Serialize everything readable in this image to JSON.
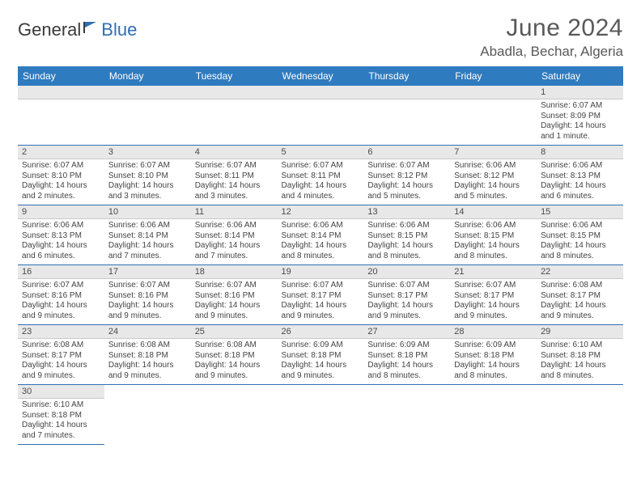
{
  "logo": {
    "text1": "General",
    "text2": "Blue"
  },
  "title": "June 2024",
  "location": "Abadla, Bechar, Algeria",
  "colors": {
    "header_bg": "#2f7bbf",
    "header_text": "#ffffff",
    "daynum_bg": "#e8e8e8",
    "cell_border": "#2f6fb3",
    "title_color": "#595959",
    "logo_gray": "#3a3a3a",
    "logo_blue": "#2f6fb3"
  },
  "day_headers": [
    "Sunday",
    "Monday",
    "Tuesday",
    "Wednesday",
    "Thursday",
    "Friday",
    "Saturday"
  ],
  "weeks": [
    [
      {
        "empty": true
      },
      {
        "empty": true
      },
      {
        "empty": true
      },
      {
        "empty": true
      },
      {
        "empty": true
      },
      {
        "empty": true
      },
      {
        "day": "1",
        "sunrise": "Sunrise: 6:07 AM",
        "sunset": "Sunset: 8:09 PM",
        "daylight": "Daylight: 14 hours and 1 minute."
      }
    ],
    [
      {
        "day": "2",
        "sunrise": "Sunrise: 6:07 AM",
        "sunset": "Sunset: 8:10 PM",
        "daylight": "Daylight: 14 hours and 2 minutes."
      },
      {
        "day": "3",
        "sunrise": "Sunrise: 6:07 AM",
        "sunset": "Sunset: 8:10 PM",
        "daylight": "Daylight: 14 hours and 3 minutes."
      },
      {
        "day": "4",
        "sunrise": "Sunrise: 6:07 AM",
        "sunset": "Sunset: 8:11 PM",
        "daylight": "Daylight: 14 hours and 3 minutes."
      },
      {
        "day": "5",
        "sunrise": "Sunrise: 6:07 AM",
        "sunset": "Sunset: 8:11 PM",
        "daylight": "Daylight: 14 hours and 4 minutes."
      },
      {
        "day": "6",
        "sunrise": "Sunrise: 6:07 AM",
        "sunset": "Sunset: 8:12 PM",
        "daylight": "Daylight: 14 hours and 5 minutes."
      },
      {
        "day": "7",
        "sunrise": "Sunrise: 6:06 AM",
        "sunset": "Sunset: 8:12 PM",
        "daylight": "Daylight: 14 hours and 5 minutes."
      },
      {
        "day": "8",
        "sunrise": "Sunrise: 6:06 AM",
        "sunset": "Sunset: 8:13 PM",
        "daylight": "Daylight: 14 hours and 6 minutes."
      }
    ],
    [
      {
        "day": "9",
        "sunrise": "Sunrise: 6:06 AM",
        "sunset": "Sunset: 8:13 PM",
        "daylight": "Daylight: 14 hours and 6 minutes."
      },
      {
        "day": "10",
        "sunrise": "Sunrise: 6:06 AM",
        "sunset": "Sunset: 8:14 PM",
        "daylight": "Daylight: 14 hours and 7 minutes."
      },
      {
        "day": "11",
        "sunrise": "Sunrise: 6:06 AM",
        "sunset": "Sunset: 8:14 PM",
        "daylight": "Daylight: 14 hours and 7 minutes."
      },
      {
        "day": "12",
        "sunrise": "Sunrise: 6:06 AM",
        "sunset": "Sunset: 8:14 PM",
        "daylight": "Daylight: 14 hours and 8 minutes."
      },
      {
        "day": "13",
        "sunrise": "Sunrise: 6:06 AM",
        "sunset": "Sunset: 8:15 PM",
        "daylight": "Daylight: 14 hours and 8 minutes."
      },
      {
        "day": "14",
        "sunrise": "Sunrise: 6:06 AM",
        "sunset": "Sunset: 8:15 PM",
        "daylight": "Daylight: 14 hours and 8 minutes."
      },
      {
        "day": "15",
        "sunrise": "Sunrise: 6:06 AM",
        "sunset": "Sunset: 8:15 PM",
        "daylight": "Daylight: 14 hours and 8 minutes."
      }
    ],
    [
      {
        "day": "16",
        "sunrise": "Sunrise: 6:07 AM",
        "sunset": "Sunset: 8:16 PM",
        "daylight": "Daylight: 14 hours and 9 minutes."
      },
      {
        "day": "17",
        "sunrise": "Sunrise: 6:07 AM",
        "sunset": "Sunset: 8:16 PM",
        "daylight": "Daylight: 14 hours and 9 minutes."
      },
      {
        "day": "18",
        "sunrise": "Sunrise: 6:07 AM",
        "sunset": "Sunset: 8:16 PM",
        "daylight": "Daylight: 14 hours and 9 minutes."
      },
      {
        "day": "19",
        "sunrise": "Sunrise: 6:07 AM",
        "sunset": "Sunset: 8:17 PM",
        "daylight": "Daylight: 14 hours and 9 minutes."
      },
      {
        "day": "20",
        "sunrise": "Sunrise: 6:07 AM",
        "sunset": "Sunset: 8:17 PM",
        "daylight": "Daylight: 14 hours and 9 minutes."
      },
      {
        "day": "21",
        "sunrise": "Sunrise: 6:07 AM",
        "sunset": "Sunset: 8:17 PM",
        "daylight": "Daylight: 14 hours and 9 minutes."
      },
      {
        "day": "22",
        "sunrise": "Sunrise: 6:08 AM",
        "sunset": "Sunset: 8:17 PM",
        "daylight": "Daylight: 14 hours and 9 minutes."
      }
    ],
    [
      {
        "day": "23",
        "sunrise": "Sunrise: 6:08 AM",
        "sunset": "Sunset: 8:17 PM",
        "daylight": "Daylight: 14 hours and 9 minutes."
      },
      {
        "day": "24",
        "sunrise": "Sunrise: 6:08 AM",
        "sunset": "Sunset: 8:18 PM",
        "daylight": "Daylight: 14 hours and 9 minutes."
      },
      {
        "day": "25",
        "sunrise": "Sunrise: 6:08 AM",
        "sunset": "Sunset: 8:18 PM",
        "daylight": "Daylight: 14 hours and 9 minutes."
      },
      {
        "day": "26",
        "sunrise": "Sunrise: 6:09 AM",
        "sunset": "Sunset: 8:18 PM",
        "daylight": "Daylight: 14 hours and 9 minutes."
      },
      {
        "day": "27",
        "sunrise": "Sunrise: 6:09 AM",
        "sunset": "Sunset: 8:18 PM",
        "daylight": "Daylight: 14 hours and 8 minutes."
      },
      {
        "day": "28",
        "sunrise": "Sunrise: 6:09 AM",
        "sunset": "Sunset: 8:18 PM",
        "daylight": "Daylight: 14 hours and 8 minutes."
      },
      {
        "day": "29",
        "sunrise": "Sunrise: 6:10 AM",
        "sunset": "Sunset: 8:18 PM",
        "daylight": "Daylight: 14 hours and 8 minutes."
      }
    ],
    [
      {
        "day": "30",
        "sunrise": "Sunrise: 6:10 AM",
        "sunset": "Sunset: 8:18 PM",
        "daylight": "Daylight: 14 hours and 7 minutes."
      },
      {
        "empty": true
      },
      {
        "empty": true
      },
      {
        "empty": true
      },
      {
        "empty": true
      },
      {
        "empty": true
      },
      {
        "empty": true
      }
    ]
  ]
}
